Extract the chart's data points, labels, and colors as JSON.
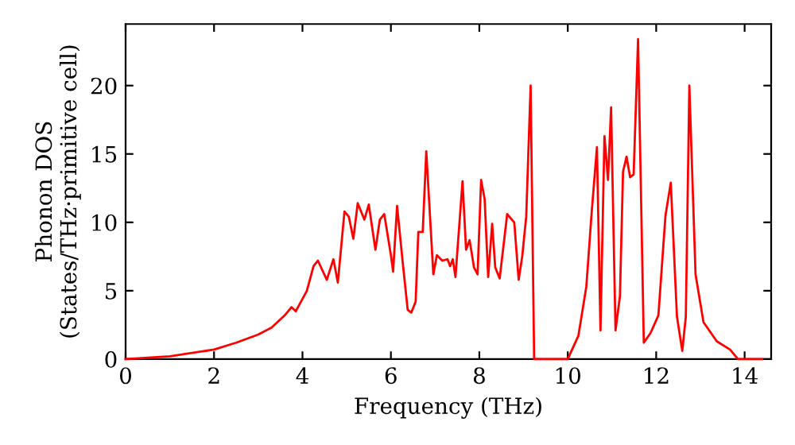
{
  "chart_data": {
    "type": "line",
    "xlabel": "Frequency (THz)",
    "ylabel": "Phonon DOS\n(States/THz·primitive cell)",
    "xlim": [
      0,
      14.6
    ],
    "ylim": [
      0,
      24.5
    ],
    "xticks": [
      0,
      2,
      4,
      6,
      8,
      10,
      12,
      14
    ],
    "yticks": [
      0,
      5,
      10,
      15,
      20
    ],
    "grid": false,
    "legend": false,
    "marker": "none",
    "line_style": "solid",
    "series": [
      {
        "color": "#ff0000",
        "x": [
          0,
          1.0,
          2.0,
          2.5,
          3.0,
          3.3,
          3.6,
          3.75,
          3.85,
          4.1,
          4.25,
          4.35,
          4.55,
          4.7,
          4.8,
          4.95,
          5.05,
          5.15,
          5.25,
          5.4,
          5.5,
          5.65,
          5.75,
          5.85,
          6.0,
          6.05,
          6.14,
          6.26,
          6.38,
          6.46,
          6.56,
          6.62,
          6.72,
          6.8,
          6.96,
          7.04,
          7.16,
          7.28,
          7.34,
          7.4,
          7.46,
          7.62,
          7.7,
          7.78,
          7.88,
          7.96,
          8.04,
          8.12,
          8.2,
          8.29,
          8.36,
          8.46,
          8.63,
          8.79,
          8.89,
          8.97,
          9.06,
          9.16,
          9.24,
          10.0,
          10.24,
          10.42,
          10.54,
          10.66,
          10.74,
          10.83,
          10.91,
          10.98,
          11.08,
          11.18,
          11.25,
          11.33,
          11.41,
          11.49,
          11.59,
          11.72,
          11.87,
          12.05,
          12.21,
          12.33,
          12.47,
          12.59,
          12.67,
          12.75,
          12.89,
          13.07,
          13.37,
          13.67,
          13.85,
          14.4
        ],
        "values": [
          0,
          0.2,
          0.7,
          1.2,
          1.8,
          2.3,
          3.2,
          3.8,
          3.5,
          5.0,
          6.8,
          7.2,
          5.8,
          7.3,
          5.6,
          10.8,
          10.4,
          8.8,
          11.4,
          10.2,
          11.3,
          8.0,
          10.2,
          10.6,
          7.6,
          6.4,
          11.2,
          7.3,
          3.6,
          3.4,
          4.2,
          9.3,
          9.3,
          15.2,
          6.2,
          7.6,
          7.2,
          7.3,
          6.8,
          7.3,
          6.0,
          13.0,
          8.0,
          8.7,
          6.7,
          6.2,
          13.1,
          11.7,
          6.0,
          9.9,
          6.7,
          5.9,
          10.6,
          10.0,
          5.8,
          7.5,
          10.4,
          20.0,
          0,
          0,
          1.7,
          5.3,
          10.7,
          15.5,
          2.1,
          16.3,
          13.1,
          18.4,
          2.1,
          4.6,
          13.7,
          14.8,
          13.3,
          13.5,
          23.4,
          1.2,
          1.9,
          3.2,
          10.5,
          12.9,
          3.1,
          0.6,
          3.1,
          20.0,
          6.2,
          2.7,
          1.3,
          0.7,
          0,
          0
        ]
      }
    ]
  }
}
